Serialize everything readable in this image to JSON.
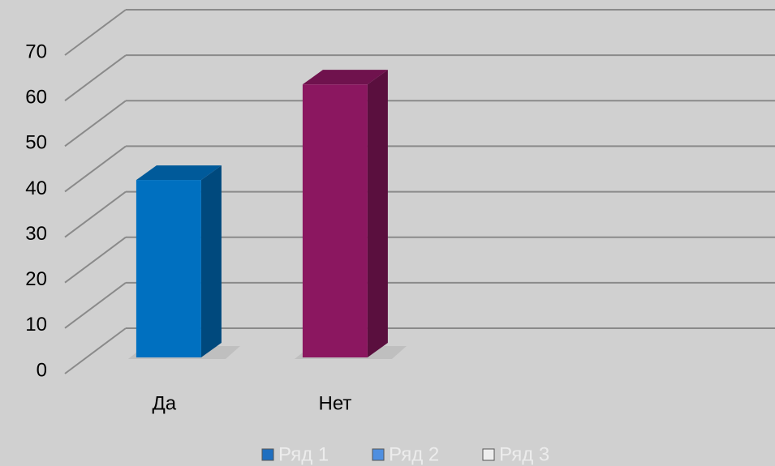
{
  "chart_data": {
    "type": "bar3d",
    "categories": [
      "Да",
      "Нет",
      null,
      null
    ],
    "series": [
      {
        "name": "Ряд 1",
        "color": "#1f6fc0",
        "colors": [
          "#0070c0",
          "#8b1760"
        ],
        "values": [
          39,
          60,
          null,
          null
        ]
      },
      {
        "name": "Ряд 2",
        "color": "#4f8fe0",
        "values": [
          null,
          null,
          null,
          null
        ]
      },
      {
        "name": "Ряд 3",
        "color": "#eeeeee",
        "values": [
          null,
          null,
          null,
          null
        ]
      }
    ],
    "ylim": [
      0,
      70
    ],
    "yticks": [
      0,
      10,
      20,
      30,
      40,
      50,
      60,
      70
    ],
    "grid": true
  }
}
